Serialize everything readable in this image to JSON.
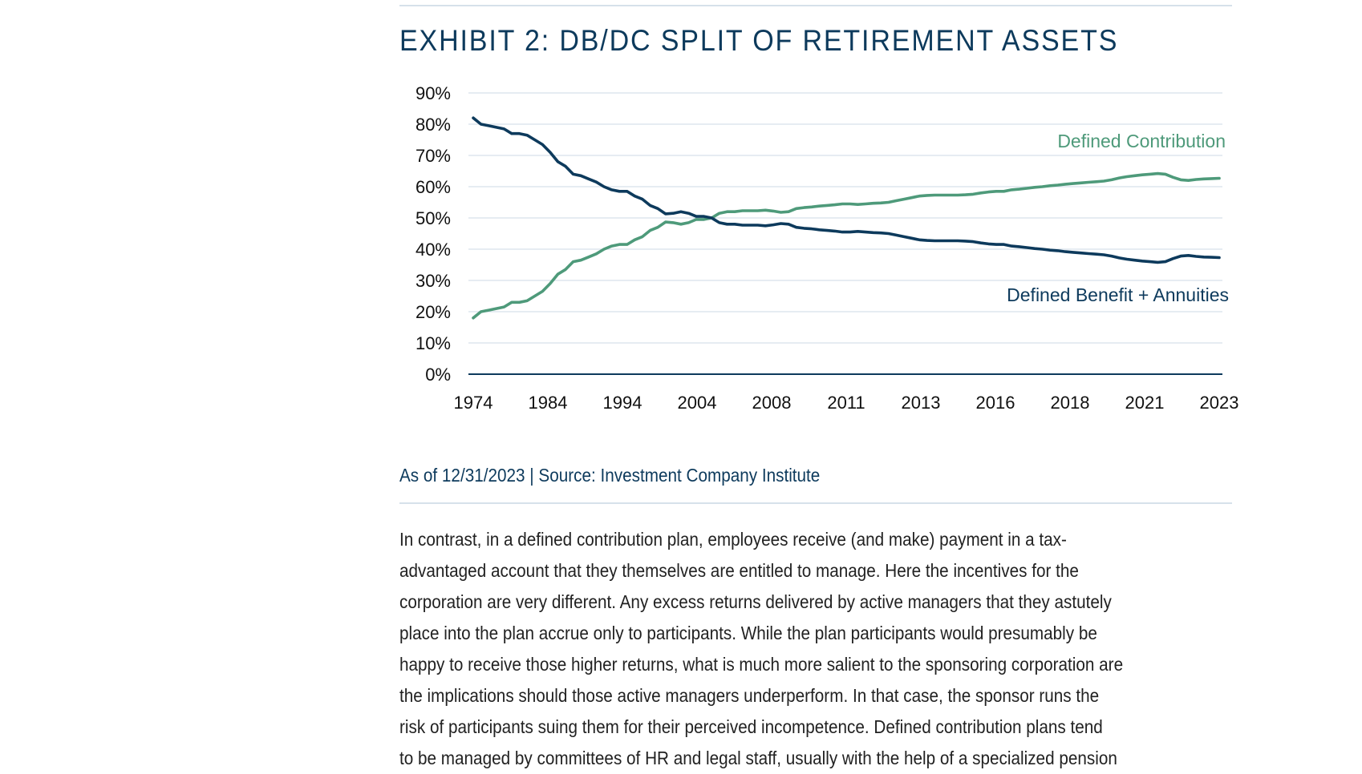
{
  "colors": {
    "dc_line": "#4e9a7a",
    "db_line": "#0d3a5c",
    "gridline": "#d6e1ea",
    "title": "#0d3a5c",
    "body_text": "#222222"
  },
  "exhibit": {
    "title": "EXHIBIT 2: DB/DC SPLIT OF RETIREMENT ASSETS",
    "source": "As of 12/31/2023 | Source: Investment Company Institute"
  },
  "chart_data": {
    "type": "line",
    "title": "EXHIBIT 2: DB/DC SPLIT OF RETIREMENT ASSETS",
    "xlabel": "",
    "ylabel": "",
    "ylim": [
      0,
      90
    ],
    "y_ticks": [
      "0%",
      "10%",
      "20%",
      "30%",
      "40%",
      "50%",
      "60%",
      "70%",
      "80%",
      "90%"
    ],
    "x_ticks": [
      "1974",
      "1984",
      "1994",
      "2004",
      "2008",
      "2011",
      "2013",
      "2016",
      "2018",
      "2021",
      "2023"
    ],
    "grid": true,
    "series": [
      {
        "name": "Defined Contribution",
        "values": [
          18,
          20,
          20.5,
          21,
          21.5,
          23,
          23,
          23.5,
          25,
          26.5,
          29,
          32,
          33.5,
          36,
          36.5,
          37.5,
          38.5,
          40,
          41,
          41.5,
          41.5,
          43,
          44,
          46,
          47,
          48.7,
          48.5,
          48,
          48.5,
          49.5,
          49.5,
          50,
          51.5,
          52,
          52,
          52.3,
          52.3,
          52.3,
          52.5,
          52.2,
          51.8,
          52,
          53,
          53.3,
          53.5,
          53.8,
          54,
          54.2,
          54.5,
          54.5,
          54.3,
          54.5,
          54.7,
          54.8,
          55,
          55.5,
          56,
          56.5,
          57,
          57.2,
          57.3,
          57.3,
          57.3,
          57.3,
          57.4,
          57.6,
          58,
          58.3,
          58.5,
          58.5,
          59,
          59.2,
          59.5,
          59.8,
          60,
          60.3,
          60.5,
          60.8,
          61,
          61.2,
          61.4,
          61.6,
          61.8,
          62.2,
          62.8,
          63.2,
          63.5,
          63.8,
          64,
          64.2,
          64,
          63,
          62.2,
          62,
          62.3,
          62.5,
          62.6,
          62.7
        ]
      },
      {
        "name": "Defined Benefit + Annuities",
        "values": [
          82,
          80,
          79.5,
          79,
          78.5,
          77,
          77,
          76.5,
          75,
          73.5,
          71,
          68,
          66.5,
          64,
          63.5,
          62.5,
          61.5,
          60,
          59,
          58.5,
          58.5,
          57,
          56,
          54,
          53,
          51.3,
          51.5,
          52,
          51.5,
          50.5,
          50.5,
          50,
          48.5,
          48,
          48,
          47.7,
          47.7,
          47.7,
          47.5,
          47.8,
          48.2,
          48,
          47,
          46.7,
          46.5,
          46.2,
          46,
          45.8,
          45.5,
          45.5,
          45.7,
          45.5,
          45.3,
          45.2,
          45,
          44.5,
          44,
          43.5,
          43,
          42.8,
          42.7,
          42.7,
          42.7,
          42.7,
          42.6,
          42.4,
          42,
          41.7,
          41.5,
          41.5,
          41,
          40.8,
          40.5,
          40.2,
          40,
          39.7,
          39.5,
          39.2,
          39,
          38.8,
          38.6,
          38.4,
          38.2,
          37.8,
          37.2,
          36.8,
          36.5,
          36.2,
          36,
          35.8,
          36,
          37,
          37.8,
          38,
          37.7,
          37.5,
          37.4,
          37.3
        ]
      }
    ]
  },
  "body": {
    "lines": [
      "In contrast, in a defined contribution plan, employees receive (and make) payment in a tax-",
      "advantaged account that they themselves are entitled to manage. Here the incentives for the",
      "corporation are very different. Any excess returns delivered by active managers that they astutely",
      "place into the plan accrue only to participants. While the plan participants would presumably be",
      "happy to receive those higher returns, what is much more salient to the sponsoring corporation are",
      "the implications should those active managers underperform. In that case, the sponsor runs the",
      "risk of participants suing them for their perceived incompetence. Defined contribution plans tend",
      "to be managed by committees of HR and legal staff, usually with the help of a specialized pension"
    ]
  }
}
